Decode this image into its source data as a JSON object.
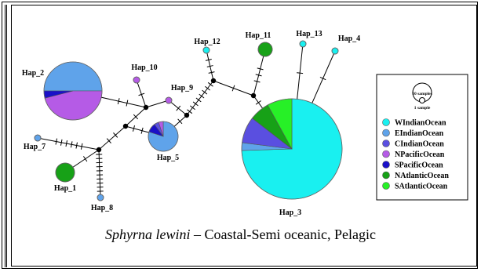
{
  "caption": {
    "species": "Sphyrna lewini",
    "rest": " – Coastal-Semi oceanic, Pelagic"
  },
  "colors": {
    "WIndianOcean": "#19f0f0",
    "EIndianOcean": "#5fa3ea",
    "CIndianOcean": "#5a4fe0",
    "NPacificOcean": "#b55be6",
    "SPacificOcean": "#1a10c8",
    "NAtlanticOcean": "#17a117",
    "SAtlanticOcean": "#27f027"
  },
  "legend": {
    "size_large": "10 samples",
    "size_small": "1 sample",
    "entries": [
      {
        "label": "WIndianOcean",
        "color_key": "WIndianOcean"
      },
      {
        "label": "EIndianOcean",
        "color_key": "EIndianOcean"
      },
      {
        "label": "CIndianOcean",
        "color_key": "CIndianOcean"
      },
      {
        "label": "NPacificOcean",
        "color_key": "NPacificOcean"
      },
      {
        "label": "SPacificOcean",
        "color_key": "SPacificOcean"
      },
      {
        "label": "NAtlanticOcean",
        "color_key": "NAtlanticOcean"
      },
      {
        "label": "SAtlanticOcean",
        "color_key": "SAtlanticOcean"
      }
    ]
  },
  "haplotypes": [
    {
      "name": "Hap_1",
      "segments": [
        {
          "pop": "NAtlanticOcean",
          "share": 1
        }
      ]
    },
    {
      "name": "Hap_2",
      "segments": [
        {
          "pop": "EIndianOcean",
          "share": 0.5
        },
        {
          "pop": "NPacificOcean",
          "share": 0.46
        },
        {
          "pop": "SPacificOcean",
          "share": 0.04
        }
      ]
    },
    {
      "name": "Hap_3",
      "segments": [
        {
          "pop": "WIndianOcean",
          "share": 0.745
        },
        {
          "pop": "EIndianOcean",
          "share": 0.025
        },
        {
          "pop": "CIndianOcean",
          "share": 0.085
        },
        {
          "pop": "NAtlanticOcean",
          "share": 0.065
        },
        {
          "pop": "SAtlanticOcean",
          "share": 0.08
        }
      ]
    },
    {
      "name": "Hap_4",
      "segments": [
        {
          "pop": "WIndianOcean",
          "share": 1
        }
      ]
    },
    {
      "name": "Hap_5",
      "segments": [
        {
          "pop": "EIndianOcean",
          "share": 0.8
        },
        {
          "pop": "SPacificOcean",
          "share": 0.1
        },
        {
          "pop": "CIndianOcean",
          "share": 0.05
        },
        {
          "pop": "NPacificOcean",
          "share": 0.05
        }
      ]
    },
    {
      "name": "Hap_7",
      "segments": [
        {
          "pop": "EIndianOcean",
          "share": 1
        }
      ]
    },
    {
      "name": "Hap_8",
      "segments": [
        {
          "pop": "EIndianOcean",
          "share": 1
        }
      ]
    },
    {
      "name": "Hap_9",
      "segments": [
        {
          "pop": "NPacificOcean",
          "share": 1
        }
      ]
    },
    {
      "name": "Hap_10",
      "segments": [
        {
          "pop": "NPacificOcean",
          "share": 1
        }
      ]
    },
    {
      "name": "Hap_11",
      "segments": [
        {
          "pop": "NAtlanticOcean",
          "share": 1
        }
      ]
    },
    {
      "name": "Hap_12",
      "segments": [
        {
          "pop": "WIndianOcean",
          "share": 1
        }
      ]
    },
    {
      "name": "Hap_13",
      "segments": [
        {
          "pop": "WIndianOcean",
          "share": 1
        }
      ]
    }
  ]
}
